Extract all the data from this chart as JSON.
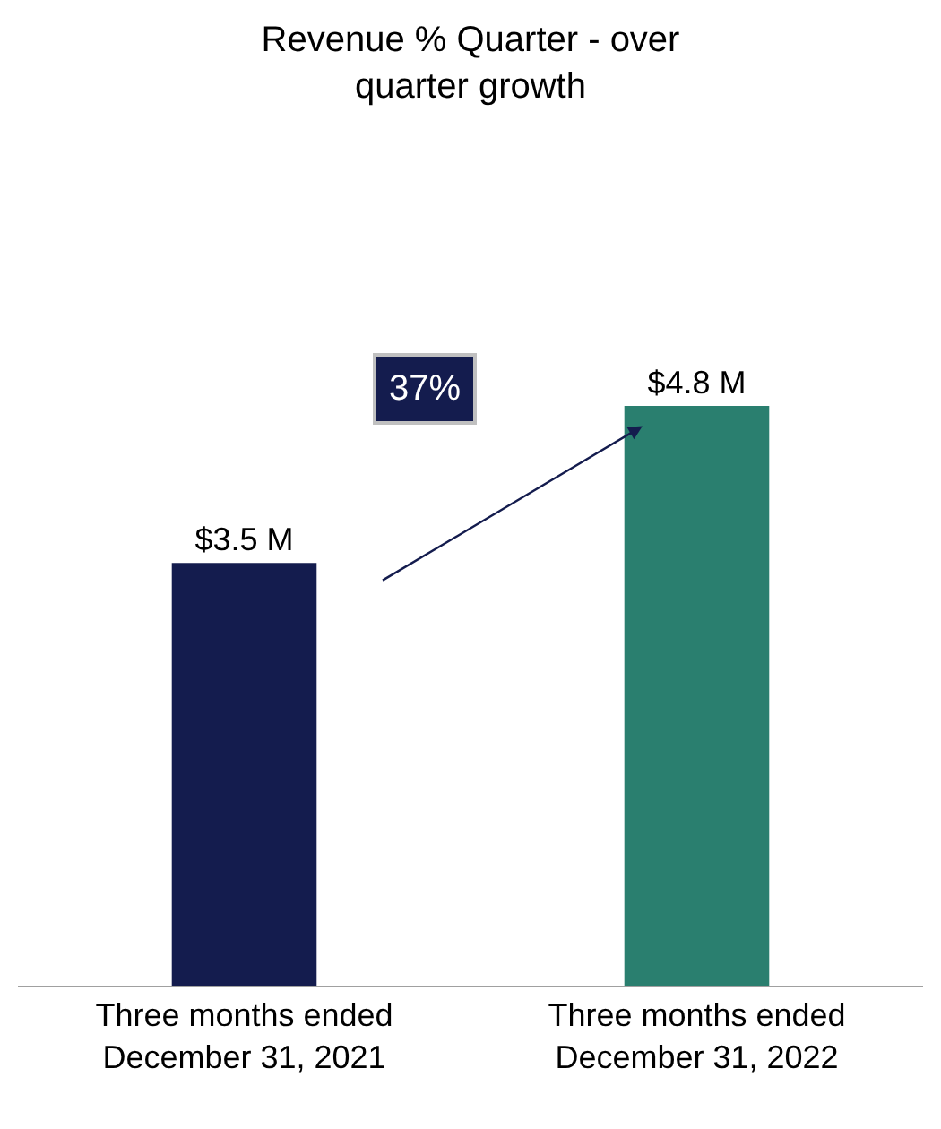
{
  "chart_data": {
    "type": "bar",
    "title": "Revenue % Quarter - over quarter growth",
    "categories": [
      "Three months ended December 31, 2021",
      "Three months ended December 31, 2022"
    ],
    "values": [
      3.5,
      4.8
    ],
    "colors": [
      "#141c4e",
      "#2a7f6f"
    ],
    "value_labels": [
      "$3.5 M",
      "$4.8 M"
    ],
    "annotations": [
      "37%"
    ],
    "legend": false
  }
}
